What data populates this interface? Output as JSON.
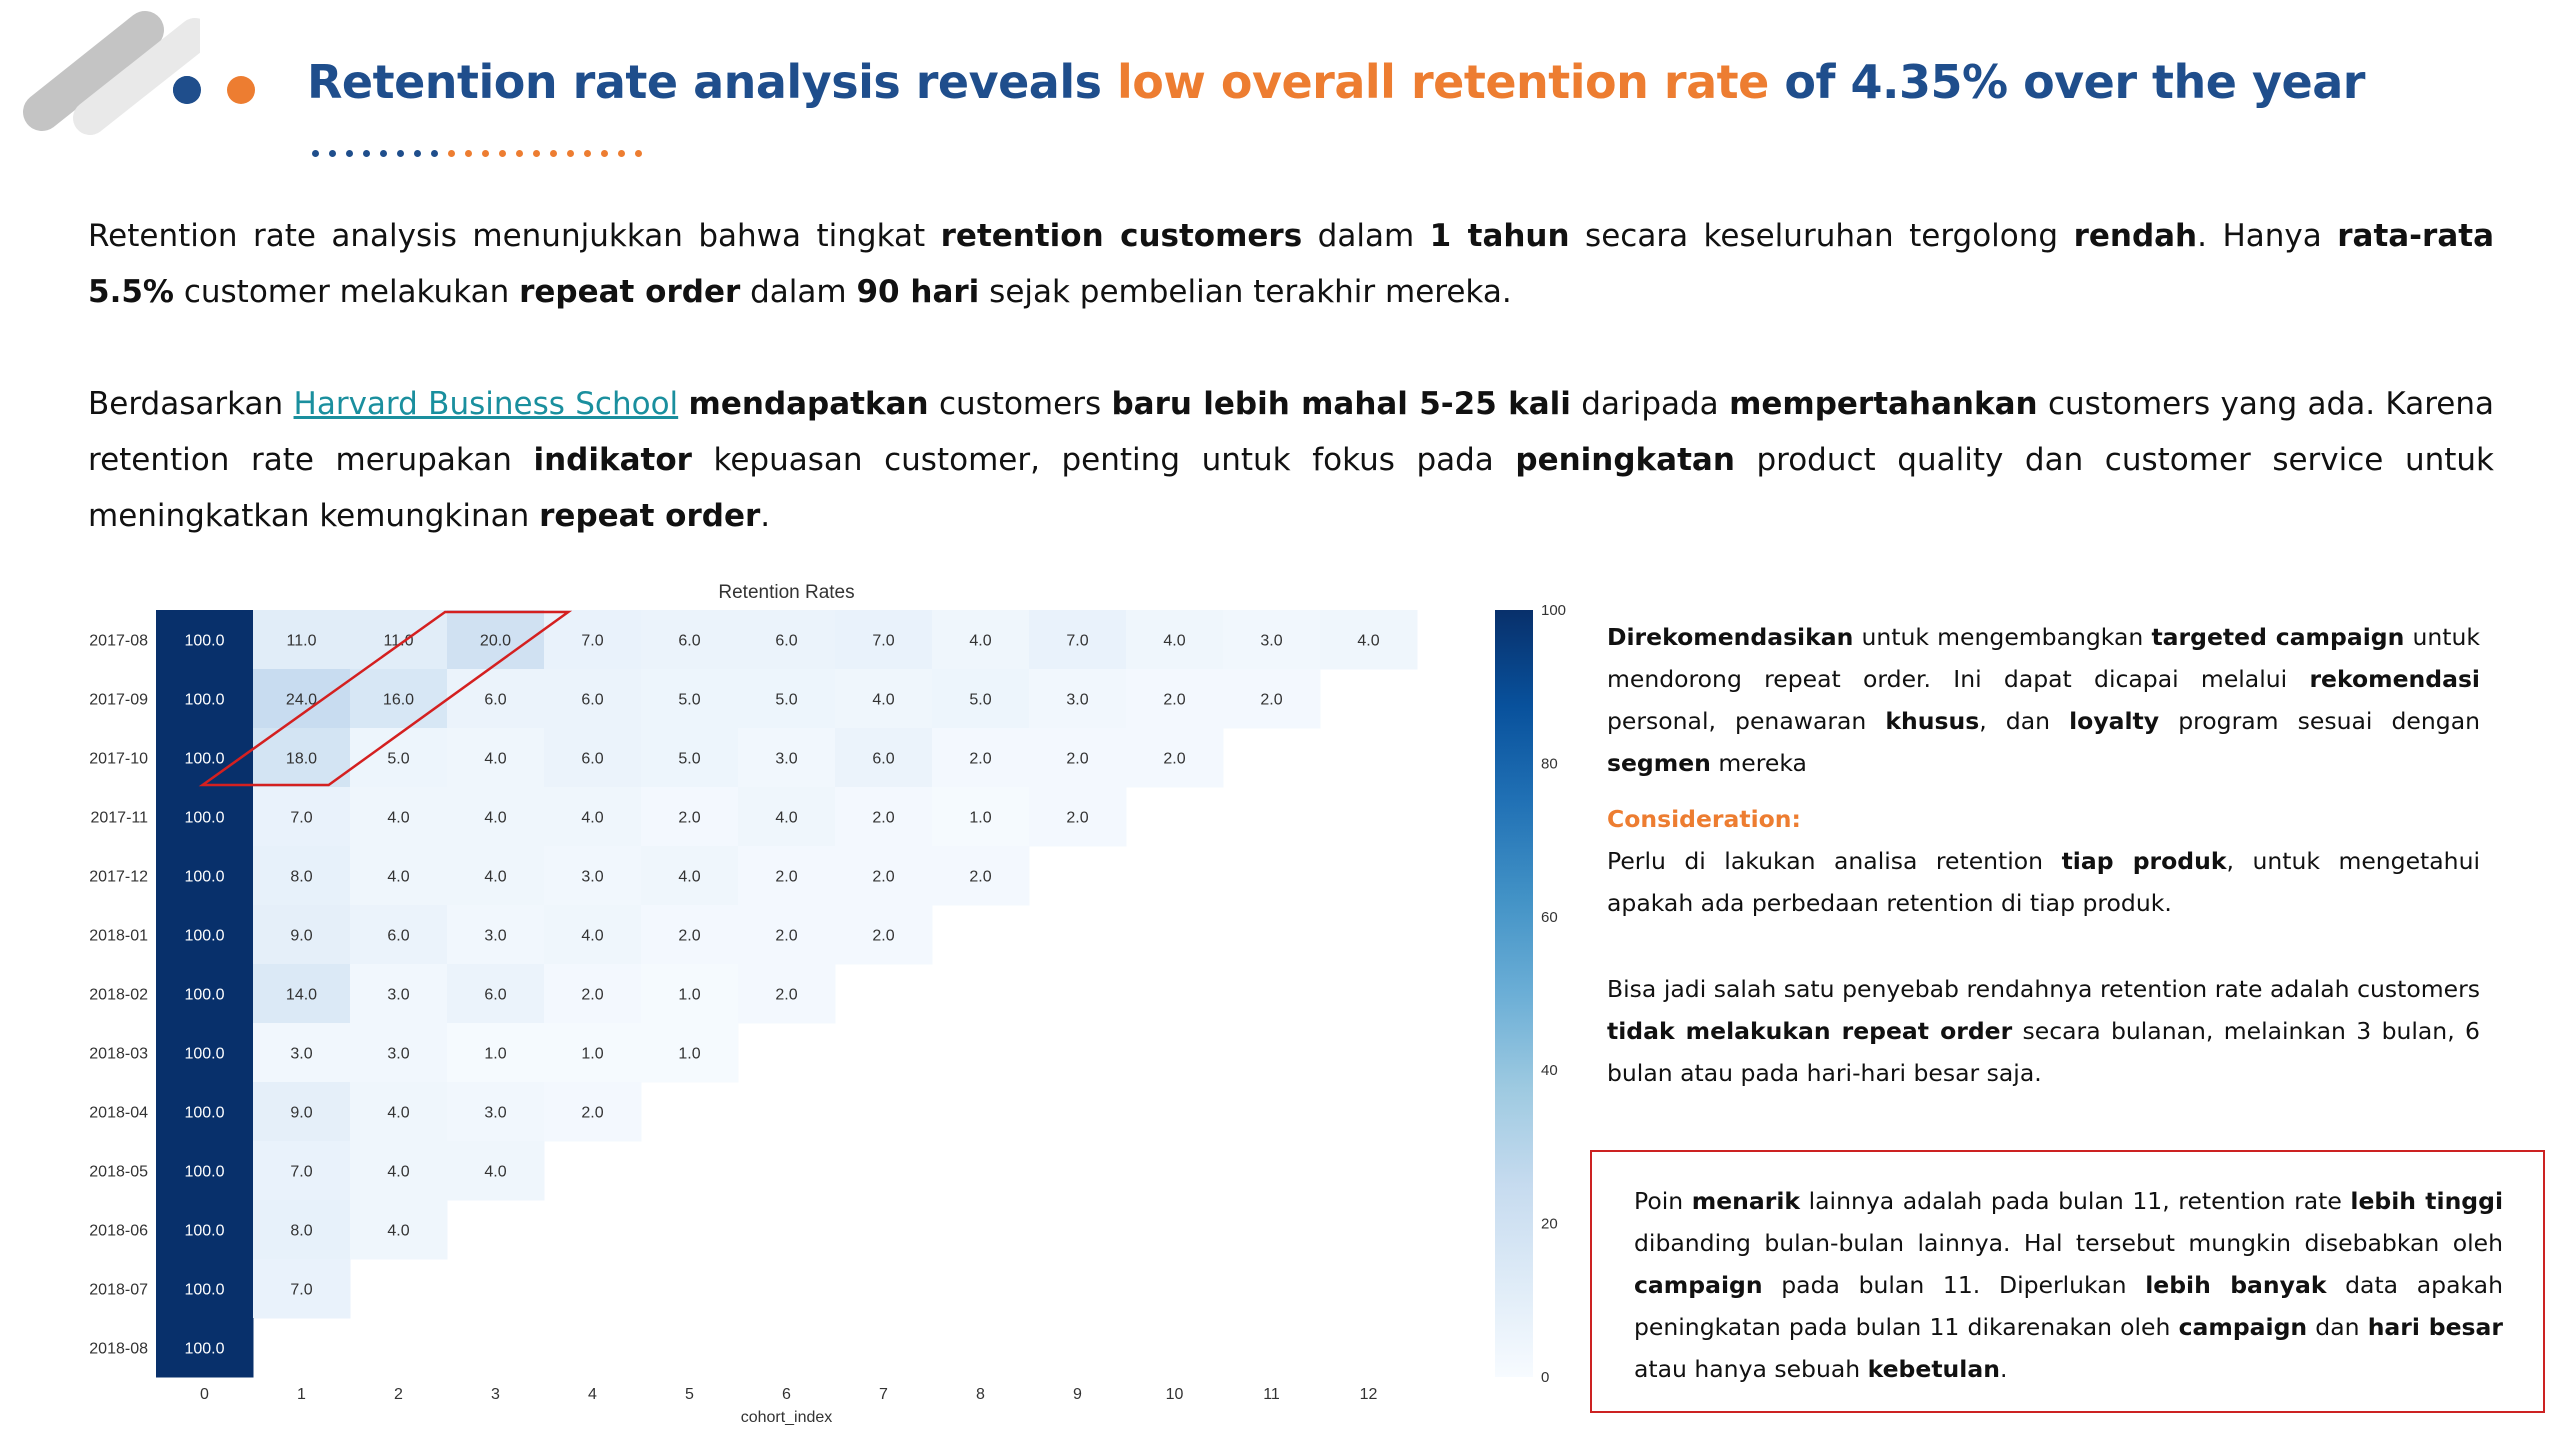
{
  "header": {
    "title_part1": "Retention rate analysis reveals ",
    "title_highlight": "low overall retention rate",
    "title_part2": " of 4.35% over the year"
  },
  "paragraph1": {
    "t1": "Retention rate analysis menunjukkan bahwa tingkat ",
    "b1": "retention customers",
    "t2": " dalam ",
    "b2": "1 tahun",
    "t3": " secara keseluruhan tergolong ",
    "b3": "rendah",
    "t4": ". Hanya ",
    "b4": "rata-rata 5.5%",
    "t5": " customer melakukan ",
    "b5": "repeat order",
    "t6": " dalam ",
    "b6": "90 hari",
    "t7": " sejak pembelian terakhir mereka."
  },
  "paragraph2": {
    "t1": "Berdasarkan ",
    "link": "Harvard Business School",
    "t2": " ",
    "b1": "mendapatkan",
    "t3": " customers ",
    "b2": "baru lebih mahal 5-25 kali",
    "t4": " daripada ",
    "b3": "mempertahankan",
    "t5": " customers yang ada. Karena retention rate merupakan ",
    "b4": "indikator",
    "t6": " kepuasan customer, penting untuk fokus pada ",
    "b5": "peningkatan",
    "t7": " product quality dan customer service untuk meningkatkan kemungkinan ",
    "b6": "repeat order",
    "t8": "."
  },
  "chart_data": {
    "type": "heatmap",
    "title": "Retention Rates",
    "xlabel": "cohort_index",
    "ylabel": "",
    "x": [
      "0",
      "1",
      "2",
      "3",
      "4",
      "5",
      "6",
      "7",
      "8",
      "9",
      "10",
      "11",
      "12"
    ],
    "y": [
      "2017-08",
      "2017-09",
      "2017-10",
      "2017-11",
      "2017-12",
      "2018-01",
      "2018-02",
      "2018-03",
      "2018-04",
      "2018-05",
      "2018-06",
      "2018-07",
      "2018-08"
    ],
    "values": [
      [
        100.0,
        11.0,
        11.0,
        20.0,
        7.0,
        6.0,
        6.0,
        7.0,
        4.0,
        7.0,
        4.0,
        3.0,
        4.0
      ],
      [
        100.0,
        24.0,
        16.0,
        6.0,
        6.0,
        5.0,
        5.0,
        4.0,
        5.0,
        3.0,
        2.0,
        2.0,
        null
      ],
      [
        100.0,
        18.0,
        5.0,
        4.0,
        6.0,
        5.0,
        3.0,
        6.0,
        2.0,
        2.0,
        2.0,
        null,
        null
      ],
      [
        100.0,
        7.0,
        4.0,
        4.0,
        4.0,
        2.0,
        4.0,
        2.0,
        1.0,
        2.0,
        null,
        null,
        null
      ],
      [
        100.0,
        8.0,
        4.0,
        4.0,
        3.0,
        4.0,
        2.0,
        2.0,
        2.0,
        null,
        null,
        null,
        null
      ],
      [
        100.0,
        9.0,
        6.0,
        3.0,
        4.0,
        2.0,
        2.0,
        2.0,
        null,
        null,
        null,
        null,
        null
      ],
      [
        100.0,
        14.0,
        3.0,
        6.0,
        2.0,
        1.0,
        2.0,
        null,
        null,
        null,
        null,
        null,
        null
      ],
      [
        100.0,
        3.0,
        3.0,
        1.0,
        1.0,
        1.0,
        null,
        null,
        null,
        null,
        null,
        null,
        null
      ],
      [
        100.0,
        9.0,
        4.0,
        3.0,
        2.0,
        null,
        null,
        null,
        null,
        null,
        null,
        null,
        null
      ],
      [
        100.0,
        7.0,
        4.0,
        4.0,
        null,
        null,
        null,
        null,
        null,
        null,
        null,
        null,
        null
      ],
      [
        100.0,
        8.0,
        4.0,
        null,
        null,
        null,
        null,
        null,
        null,
        null,
        null,
        null,
        null
      ],
      [
        100.0,
        7.0,
        null,
        null,
        null,
        null,
        null,
        null,
        null,
        null,
        null,
        null,
        null
      ],
      [
        100.0,
        null,
        null,
        null,
        null,
        null,
        null,
        null,
        null,
        null,
        null,
        null,
        null
      ]
    ],
    "colorbar": {
      "min": 0,
      "max": 100,
      "ticks": [
        0,
        20,
        40,
        60,
        80,
        100
      ]
    },
    "colorscale": {
      "low": "#f7fbff",
      "high": "#08306b"
    }
  },
  "recommendation": {
    "t1": "Direkomendasikan",
    "t2": " untuk mengembangkan ",
    "b1": "targeted campaign",
    "t3": " untuk mendorong repeat order. Ini dapat dicapai melalui ",
    "b2": "rekomendasi",
    "t4": " personal, penawaran ",
    "b3": "khusus",
    "t5": ", dan ",
    "b4": "loyalty",
    "t6": " program sesuai dengan ",
    "b5": "segmen",
    "t7": " mereka"
  },
  "consideration": {
    "title": "Consideration:",
    "t1": "Perlu di lakukan analisa retention ",
    "b1": "tiap produk",
    "t2": ", untuk mengetahui apakah ada perbedaan retention di tiap produk."
  },
  "cause": {
    "t1": "Bisa jadi salah satu penyebab rendahnya retention rate adalah customers ",
    "b1": "tidak melakukan repeat order",
    "t2": " secara bulanan, melainkan 3 bulan, 6 bulan atau pada hari-hari besar saja."
  },
  "note": {
    "t1": "Poin ",
    "b1": "menarik",
    "t2": " lainnya adalah pada bulan 11, retention rate ",
    "b2": "lebih tinggi",
    "t3": " dibanding bulan-bulan lainnya. Hal tersebut mungkin disebabkan oleh ",
    "b3": "campaign",
    "t4": " pada bulan 11. Diperlukan ",
    "b4": "lebih banyak",
    "t5": " data apakah peningkatan pada bulan 11 dikarenakan oleh ",
    "b5": "campaign",
    "t6": " dan ",
    "b6": "hari besar",
    "t7": " atau hanya sebuah ",
    "b7": "kebetulan",
    "t8": "."
  },
  "colors": {
    "title_blue": "#1f4e8c",
    "accent_orange": "#ed7d31",
    "highlight_red": "#cc2222",
    "link_teal": "#1a8f9e"
  }
}
